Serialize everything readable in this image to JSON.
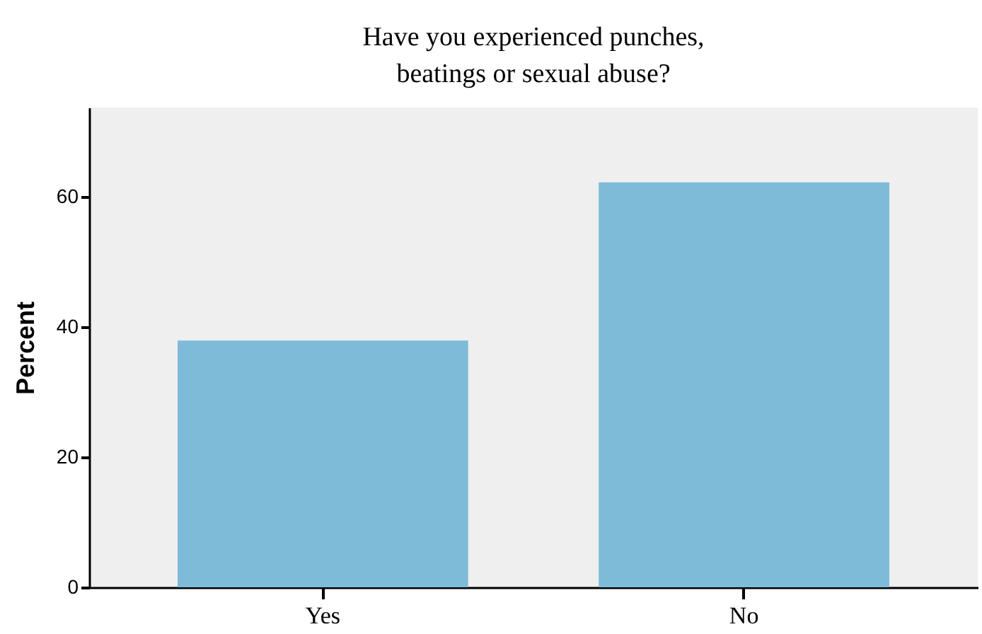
{
  "chart_data": {
    "type": "bar",
    "title": "Have you experienced punches,\nbeatings or sexual abuse?",
    "ylabel": "Percent",
    "categories": [
      "Yes",
      "No"
    ],
    "values": [
      37.9,
      62.2
    ],
    "color": "#7ebbd8",
    "ylim": [
      0,
      73.7
    ],
    "yticks": [
      0,
      20,
      40,
      60
    ],
    "grid": false
  }
}
